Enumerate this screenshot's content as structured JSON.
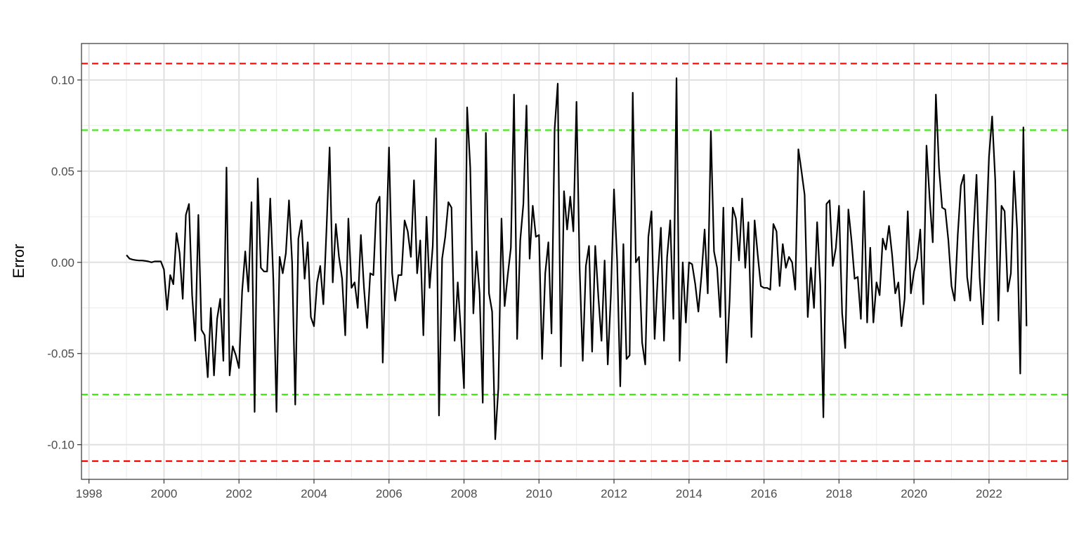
{
  "chart_data": {
    "type": "line",
    "title": "",
    "xlabel": "",
    "ylabel": "Error",
    "xlim": [
      1997.8,
      2024.1
    ],
    "ylim": [
      -0.119,
      0.12
    ],
    "grid": true,
    "legend": "none",
    "x_ticks": [
      1998,
      2000,
      2002,
      2004,
      2006,
      2008,
      2010,
      2012,
      2014,
      2016,
      2018,
      2020,
      2022
    ],
    "x_tick_labels": [
      "1998",
      "2000",
      "2002",
      "2004",
      "2006",
      "2008",
      "2010",
      "2012",
      "2014",
      "2016",
      "2018",
      "2020",
      "2022"
    ],
    "y_ticks": [
      -0.1,
      -0.05,
      0.0,
      0.05,
      0.1
    ],
    "y_tick_labels": [
      "-0.10",
      "-0.05",
      "0.00",
      "0.05",
      "0.10"
    ],
    "reference_lines": [
      {
        "y": 0.109,
        "color": "#ff0000",
        "style": "dashed"
      },
      {
        "y": -0.109,
        "color": "#ff0000",
        "style": "dashed"
      },
      {
        "y": 0.0725,
        "color": "#33ee00",
        "style": "dashed"
      },
      {
        "y": -0.0725,
        "color": "#33ee00",
        "style": "dashed"
      }
    ],
    "series": [
      {
        "color": "#000000",
        "x_start": 1999.0,
        "x_step_months": 1,
        "values": [
          0.004,
          0.002,
          0.0015,
          0.0012,
          0.001,
          0.001,
          0.0008,
          0.0005,
          0.0,
          0.0005,
          0.0005,
          0.0005,
          -0.004,
          -0.026,
          -0.007,
          -0.012,
          0.016,
          0.005,
          -0.02,
          0.026,
          0.032,
          -0.018,
          -0.043,
          0.026,
          -0.037,
          -0.04,
          -0.063,
          -0.025,
          -0.062,
          -0.031,
          -0.02,
          -0.054,
          0.052,
          -0.062,
          -0.046,
          -0.051,
          -0.058,
          -0.016,
          0.006,
          -0.016,
          0.033,
          -0.082,
          0.046,
          -0.003,
          -0.005,
          -0.005,
          0.035,
          -0.01,
          -0.082,
          0.003,
          -0.006,
          0.005,
          0.034,
          0.0,
          -0.078,
          0.013,
          0.023,
          -0.009,
          0.011,
          -0.03,
          -0.035,
          -0.011,
          -0.002,
          -0.023,
          0.018,
          0.063,
          -0.011,
          0.021,
          0.003,
          -0.009,
          -0.04,
          0.024,
          -0.014,
          -0.011,
          -0.025,
          0.015,
          -0.014,
          -0.036,
          -0.006,
          -0.007,
          0.032,
          0.036,
          -0.055,
          0.005,
          0.063,
          -0.006,
          -0.021,
          -0.007,
          -0.007,
          0.023,
          0.017,
          0.003,
          0.045,
          -0.006,
          0.012,
          -0.04,
          0.025,
          -0.014,
          0.009,
          0.068,
          -0.084,
          0.002,
          0.014,
          0.033,
          0.03,
          -0.043,
          -0.011,
          -0.038,
          -0.069,
          0.085,
          0.052,
          -0.028,
          0.006,
          -0.017,
          -0.077,
          0.071,
          -0.017,
          -0.027,
          -0.097,
          -0.069,
          0.024,
          -0.024,
          -0.007,
          0.008,
          0.092,
          -0.042,
          0.012,
          0.032,
          0.086,
          0.002,
          0.031,
          0.014,
          0.015,
          -0.053,
          -0.006,
          0.011,
          -0.039,
          0.073,
          0.098,
          -0.057,
          0.039,
          0.018,
          0.036,
          0.017,
          0.088,
          -0.003,
          -0.054,
          -0.002,
          0.009,
          -0.049,
          0.009,
          -0.019,
          -0.043,
          0.001,
          -0.056,
          -0.018,
          0.04,
          0.001,
          -0.068,
          0.01,
          -0.053,
          -0.051,
          0.093,
          0.0,
          0.003,
          -0.044,
          -0.056,
          0.014,
          0.028,
          -0.042,
          -0.008,
          0.019,
          -0.043,
          0.003,
          0.023,
          -0.031,
          0.101,
          -0.054,
          0.0,
          -0.033,
          0.0,
          -0.001,
          -0.012,
          -0.027,
          -0.007,
          0.018,
          -0.017,
          0.072,
          0.006,
          -0.003,
          -0.03,
          0.03,
          -0.055,
          -0.021,
          0.03,
          0.024,
          0.001,
          0.035,
          -0.003,
          0.022,
          -0.041,
          0.023,
          0.004,
          -0.013,
          -0.014,
          -0.014,
          -0.015,
          0.021,
          0.017,
          -0.013,
          0.01,
          -0.003,
          0.003,
          0.0,
          -0.015,
          0.062,
          0.05,
          0.037,
          -0.03,
          -0.003,
          -0.025,
          0.022,
          -0.012,
          -0.085,
          0.032,
          0.034,
          -0.002,
          0.008,
          0.031,
          -0.028,
          -0.047,
          0.029,
          0.012,
          -0.009,
          -0.008,
          -0.031,
          0.039,
          -0.033,
          0.008,
          -0.033,
          -0.011,
          -0.018,
          0.013,
          0.007,
          0.02,
          0.004,
          -0.017,
          -0.011,
          -0.035,
          -0.02,
          0.028,
          -0.017,
          -0.005,
          0.002,
          0.018,
          -0.023,
          0.064,
          0.035,
          0.011,
          0.092,
          0.052,
          0.03,
          0.029,
          0.012,
          -0.013,
          -0.021,
          0.015,
          0.042,
          0.048,
          -0.008,
          -0.021,
          0.015,
          0.048,
          -0.008,
          -0.034,
          0.013,
          0.058,
          0.08,
          0.045,
          -0.032,
          0.031,
          0.028,
          -0.016,
          -0.006,
          0.05,
          0.018,
          -0.061,
          0.074,
          -0.035
        ]
      }
    ]
  }
}
